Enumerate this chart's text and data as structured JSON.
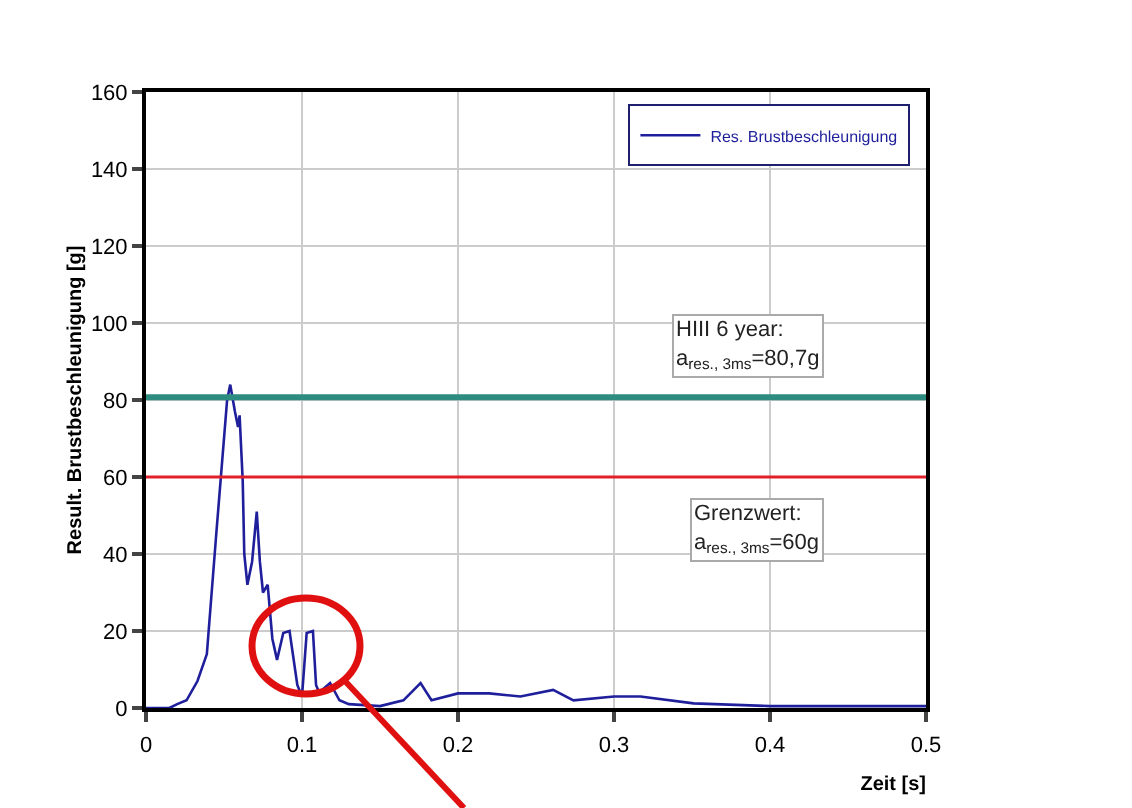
{
  "chart_data": {
    "type": "line",
    "xlabel": "Zeit [s]",
    "ylabel": "Result. Brustbeschleunigung [g]",
    "xlim": [
      0,
      0.5
    ],
    "xticks": [
      0,
      0.1,
      0.2,
      0.3,
      0.4,
      0.5
    ],
    "ylim": [
      0,
      160
    ],
    "yticks": [
      0,
      20,
      40,
      60,
      80,
      100,
      120,
      140,
      160
    ],
    "grid": true,
    "legend": "top right",
    "marker": "none",
    "line_style": "solid",
    "series": [
      {
        "name": "Res. Brustbeschleunigung",
        "color": "#1f1f9c",
        "x": [
          0,
          0.015,
          0.02,
          0.026,
          0.033,
          0.039,
          0.045,
          0.052,
          0.054,
          0.057,
          0.059,
          0.06,
          0.062,
          0.063,
          0.065,
          0.068,
          0.071,
          0.073,
          0.075,
          0.078,
          0.081,
          0.084,
          0.088,
          0.092,
          0.097,
          0.1,
          0.103,
          0.107,
          0.109,
          0.111,
          0.118,
          0.124,
          0.13,
          0.15,
          0.165,
          0.176,
          0.183,
          0.2,
          0.22,
          0.24,
          0.261,
          0.274,
          0.3,
          0.317,
          0.351,
          0.4,
          0.45,
          0.5
        ],
        "values": [
          0,
          0,
          1,
          2,
          7,
          14,
          45,
          80,
          84,
          77,
          73,
          76,
          59,
          40,
          32,
          38,
          51,
          38,
          30,
          32,
          18,
          12.5,
          19.5,
          20,
          6,
          3,
          19.5,
          20,
          6,
          4,
          6.5,
          2,
          1,
          0.5,
          2,
          6.5,
          2,
          3.8,
          3.8,
          3,
          4.7,
          2,
          3,
          3,
          1.2,
          0.5,
          0.5,
          0.5
        ]
      }
    ],
    "ref_lines": [
      {
        "axis": "y",
        "value": 80.7,
        "label": "HIII 6 year:\na$_{res., 3ms}$=80,7g",
        "color": "#2e8b7f"
      },
      {
        "axis": "y",
        "value": 60,
        "label": "Grenzwert:\na$_{res., 3ms}$=60g",
        "color": "#e0202a"
      }
    ]
  }
}
